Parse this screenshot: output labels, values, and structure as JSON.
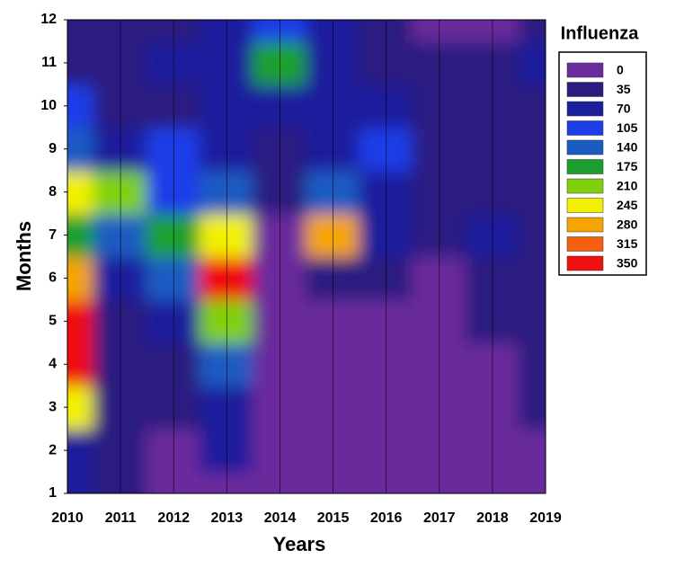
{
  "chart_data": {
    "type": "contour",
    "x_label": "Years",
    "y_label": "Months",
    "x": [
      2010,
      2011,
      2012,
      2013,
      2014,
      2015,
      2016,
      2017,
      2018,
      2019
    ],
    "y": [
      1,
      2,
      3,
      4,
      5,
      6,
      7,
      8,
      9,
      10,
      11,
      12
    ],
    "z": [
      [
        70,
        40,
        30,
        30,
        20,
        20,
        20,
        20,
        20,
        20
      ],
      [
        90,
        50,
        30,
        70,
        20,
        20,
        20,
        20,
        20,
        30
      ],
      [
        260,
        60,
        40,
        90,
        20,
        20,
        20,
        20,
        20,
        60
      ],
      [
        350,
        40,
        60,
        150,
        20,
        20,
        20,
        20,
        30,
        40
      ],
      [
        350,
        60,
        100,
        240,
        20,
        30,
        30,
        20,
        40,
        40
      ],
      [
        280,
        100,
        140,
        350,
        20,
        60,
        50,
        20,
        60,
        60
      ],
      [
        180,
        140,
        200,
        250,
        30,
        300,
        80,
        40,
        80,
        50
      ],
      [
        250,
        220,
        120,
        170,
        50,
        150,
        90,
        40,
        60,
        40
      ],
      [
        170,
        90,
        110,
        100,
        60,
        100,
        120,
        40,
        50,
        40
      ],
      [
        120,
        50,
        60,
        100,
        90,
        90,
        70,
        40,
        40,
        50
      ],
      [
        60,
        60,
        70,
        90,
        200,
        100,
        50,
        40,
        40,
        80
      ],
      [
        40,
        50,
        60,
        80,
        110,
        90,
        40,
        30,
        30,
        60
      ]
    ],
    "xlim": [
      2010,
      2019
    ],
    "ylim": [
      1,
      12
    ],
    "xticks": [
      2010,
      2011,
      2012,
      2013,
      2014,
      2015,
      2016,
      2017,
      2018,
      2019
    ],
    "yticks": [
      1,
      2,
      3,
      4,
      5,
      6,
      7,
      8,
      9,
      10,
      11,
      12
    ],
    "grid": true,
    "legend_title": "Influenza",
    "levels": [
      0,
      35,
      70,
      105,
      140,
      175,
      210,
      245,
      280,
      315,
      350
    ],
    "level_colors": [
      "#6a2b9c",
      "#2b1c80",
      "#1a1f9c",
      "#1d3de8",
      "#1b5cc2",
      "#1ba02e",
      "#80d010",
      "#f2f000",
      "#f5a400",
      "#f55f10",
      "#f01010"
    ]
  }
}
